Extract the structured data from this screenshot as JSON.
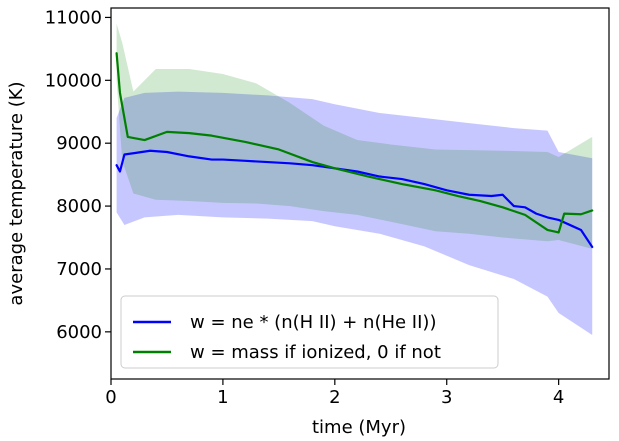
{
  "chart_data": {
    "type": "line",
    "title": "",
    "xlabel": "time (Myr)",
    "ylabel": "average temperature (K)",
    "xlim": [
      0,
      4.45
    ],
    "ylim": [
      5250,
      11150
    ],
    "xticks": [
      0,
      1,
      2,
      3,
      4
    ],
    "yticks": [
      6000,
      7000,
      8000,
      9000,
      10000,
      11000
    ],
    "grid": false,
    "legend_position": "lower-left",
    "series": [
      {
        "name": "w = ne * (n(H II) + n(He II))",
        "color": "#0000ff",
        "line": [
          [
            0.05,
            8650
          ],
          [
            0.08,
            8550
          ],
          [
            0.12,
            8820
          ],
          [
            0.2,
            8840
          ],
          [
            0.35,
            8880
          ],
          [
            0.5,
            8860
          ],
          [
            0.7,
            8790
          ],
          [
            0.9,
            8740
          ],
          [
            1.0,
            8740
          ],
          [
            1.2,
            8720
          ],
          [
            1.4,
            8700
          ],
          [
            1.6,
            8680
          ],
          [
            1.8,
            8650
          ],
          [
            2.0,
            8600
          ],
          [
            2.2,
            8550
          ],
          [
            2.4,
            8470
          ],
          [
            2.6,
            8430
          ],
          [
            2.8,
            8350
          ],
          [
            3.0,
            8250
          ],
          [
            3.2,
            8180
          ],
          [
            3.4,
            8160
          ],
          [
            3.5,
            8180
          ],
          [
            3.6,
            8000
          ],
          [
            3.7,
            7980
          ],
          [
            3.8,
            7880
          ],
          [
            3.9,
            7820
          ],
          [
            4.0,
            7780
          ],
          [
            4.1,
            7700
          ],
          [
            4.2,
            7620
          ],
          [
            4.3,
            7350
          ]
        ],
        "band_upper": [
          [
            0.05,
            9400
          ],
          [
            0.12,
            9720
          ],
          [
            0.3,
            9800
          ],
          [
            0.6,
            9820
          ],
          [
            1.0,
            9800
          ],
          [
            1.4,
            9760
          ],
          [
            1.8,
            9700
          ],
          [
            2.0,
            9620
          ],
          [
            2.4,
            9480
          ],
          [
            2.8,
            9400
          ],
          [
            3.2,
            9320
          ],
          [
            3.6,
            9240
          ],
          [
            3.9,
            9200
          ],
          [
            4.0,
            8860
          ],
          [
            4.3,
            8760
          ]
        ],
        "band_lower": [
          [
            0.05,
            7900
          ],
          [
            0.12,
            7700
          ],
          [
            0.3,
            7820
          ],
          [
            0.6,
            7860
          ],
          [
            1.0,
            7820
          ],
          [
            1.4,
            7800
          ],
          [
            1.8,
            7760
          ],
          [
            2.0,
            7680
          ],
          [
            2.4,
            7560
          ],
          [
            2.8,
            7360
          ],
          [
            3.2,
            7060
          ],
          [
            3.6,
            6840
          ],
          [
            3.9,
            6560
          ],
          [
            4.0,
            6300
          ],
          [
            4.3,
            5950
          ]
        ]
      },
      {
        "name": "w = mass if ionized, 0 if not",
        "color": "#008000",
        "line": [
          [
            0.05,
            10430
          ],
          [
            0.08,
            9800
          ],
          [
            0.15,
            9100
          ],
          [
            0.3,
            9050
          ],
          [
            0.5,
            9180
          ],
          [
            0.7,
            9160
          ],
          [
            0.9,
            9120
          ],
          [
            1.2,
            9020
          ],
          [
            1.5,
            8900
          ],
          [
            1.8,
            8700
          ],
          [
            2.0,
            8600
          ],
          [
            2.3,
            8470
          ],
          [
            2.6,
            8350
          ],
          [
            2.9,
            8250
          ],
          [
            3.1,
            8160
          ],
          [
            3.3,
            8080
          ],
          [
            3.5,
            7980
          ],
          [
            3.7,
            7860
          ],
          [
            3.9,
            7620
          ],
          [
            4.0,
            7580
          ],
          [
            4.05,
            7880
          ],
          [
            4.2,
            7870
          ],
          [
            4.3,
            7930
          ]
        ],
        "band_upper": [
          [
            0.05,
            10900
          ],
          [
            0.1,
            10600
          ],
          [
            0.2,
            9820
          ],
          [
            0.4,
            10180
          ],
          [
            0.7,
            10180
          ],
          [
            1.0,
            10100
          ],
          [
            1.3,
            9950
          ],
          [
            1.6,
            9640
          ],
          [
            1.9,
            9280
          ],
          [
            2.2,
            9050
          ],
          [
            2.5,
            8980
          ],
          [
            2.9,
            8900
          ],
          [
            3.2,
            8890
          ],
          [
            3.5,
            8880
          ],
          [
            3.9,
            8860
          ],
          [
            4.0,
            8780
          ],
          [
            4.3,
            9100
          ]
        ],
        "band_lower": [
          [
            0.05,
            10000
          ],
          [
            0.1,
            8720
          ],
          [
            0.2,
            8200
          ],
          [
            0.4,
            8100
          ],
          [
            0.7,
            8080
          ],
          [
            1.0,
            8050
          ],
          [
            1.3,
            8040
          ],
          [
            1.6,
            8000
          ],
          [
            1.9,
            7920
          ],
          [
            2.2,
            7860
          ],
          [
            2.5,
            7750
          ],
          [
            2.9,
            7600
          ],
          [
            3.2,
            7560
          ],
          [
            3.5,
            7500
          ],
          [
            3.9,
            7440
          ],
          [
            4.0,
            7460
          ],
          [
            4.3,
            7320
          ]
        ]
      }
    ]
  }
}
